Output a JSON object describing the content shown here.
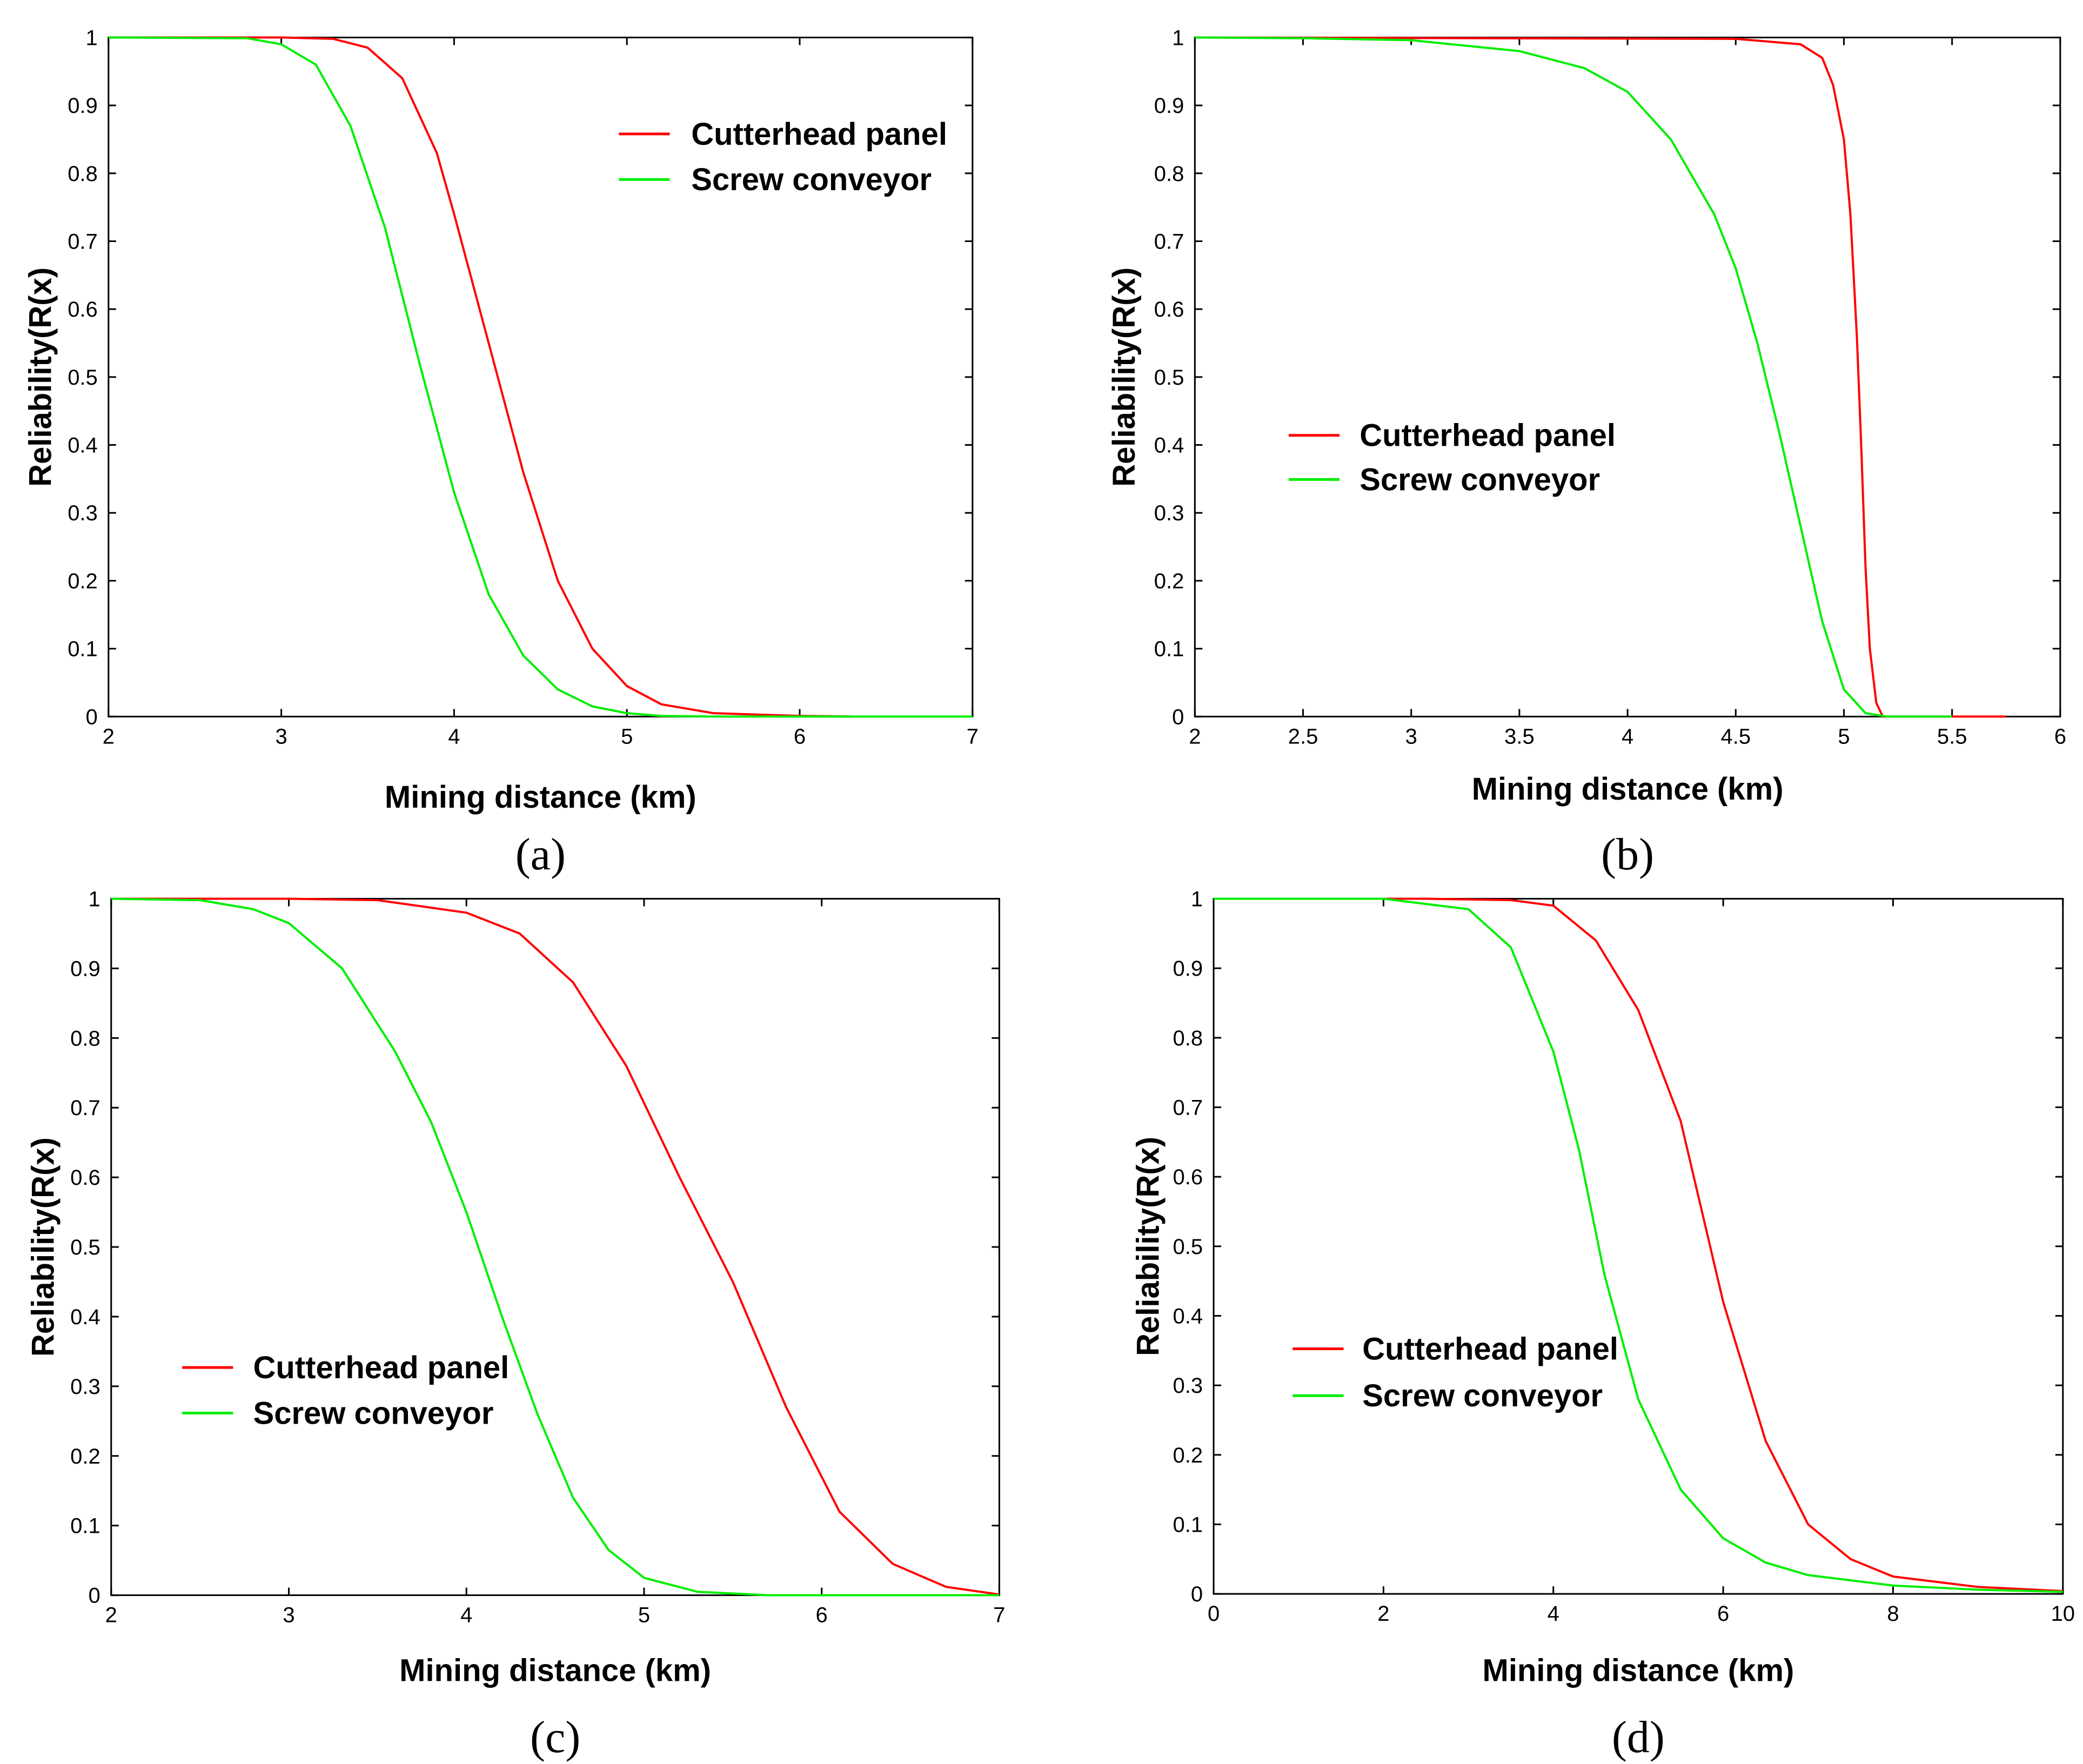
{
  "colors": {
    "cutterhead": "#ff0000",
    "screw": "#00ee00",
    "axis": "#000000"
  },
  "chart_data": [
    {
      "type": "line",
      "caption": "(a)",
      "xlabel": "Mining distance (km)",
      "ylabel": "Reliability(R(x)",
      "xlim": [
        2,
        7
      ],
      "ylim": [
        0,
        1
      ],
      "xticks": [
        2,
        3,
        4,
        5,
        6,
        7
      ],
      "xtick_labels": [
        "2",
        "3",
        "4",
        "5",
        "6",
        "7"
      ],
      "yticks": [
        0,
        0.1,
        0.2,
        0.3,
        0.4,
        0.5,
        0.6,
        0.7,
        0.8,
        0.9,
        1
      ],
      "ytick_labels": [
        "0",
        "0.1",
        "0.2",
        "0.3",
        "0.4",
        "0.5",
        "0.6",
        "0.7",
        "0.8",
        "0.9",
        "1"
      ],
      "legend_position": "top-right",
      "series": [
        {
          "name": "Cutterhead panel",
          "color": "#ff0000",
          "x": [
            2,
            3,
            3.3,
            3.5,
            3.7,
            3.9,
            4.0,
            4.2,
            4.4,
            4.6,
            4.8,
            5.0,
            5.2,
            5.5,
            6.0,
            6.3
          ],
          "y": [
            1,
            1,
            0.998,
            0.985,
            0.94,
            0.83,
            0.74,
            0.55,
            0.36,
            0.2,
            0.1,
            0.045,
            0.018,
            0.005,
            0.001,
            0
          ]
        },
        {
          "name": "Screw conveyor",
          "color": "#00ee00",
          "x": [
            2,
            2.8,
            3.0,
            3.2,
            3.4,
            3.6,
            3.8,
            4.0,
            4.2,
            4.4,
            4.6,
            4.8,
            5.0,
            5.2,
            5.5,
            7.0
          ],
          "y": [
            1,
            0.999,
            0.99,
            0.96,
            0.87,
            0.72,
            0.52,
            0.33,
            0.18,
            0.09,
            0.04,
            0.015,
            0.005,
            0.001,
            0,
            0
          ]
        }
      ]
    },
    {
      "type": "line",
      "caption": "(b)",
      "xlabel": "Mining distance (km)",
      "ylabel": "Reliability(R(x)",
      "xlim": [
        2,
        6
      ],
      "ylim": [
        0,
        1
      ],
      "xticks": [
        2,
        2.5,
        3,
        3.5,
        4,
        4.5,
        5,
        5.5,
        6
      ],
      "xtick_labels": [
        "2",
        "2.5",
        "3",
        "3.5",
        "4",
        "4.5",
        "5",
        "5.5",
        "6"
      ],
      "yticks": [
        0,
        0.1,
        0.2,
        0.3,
        0.4,
        0.5,
        0.6,
        0.7,
        0.8,
        0.9,
        1
      ],
      "ytick_labels": [
        "0",
        "0.1",
        "0.2",
        "0.3",
        "0.4",
        "0.5",
        "0.6",
        "0.7",
        "0.8",
        "0.9",
        "1"
      ],
      "legend_position": "center-left",
      "series": [
        {
          "name": "Cutterhead panel",
          "color": "#ff0000",
          "x": [
            2,
            4.5,
            4.8,
            4.9,
            4.95,
            5.0,
            5.03,
            5.06,
            5.08,
            5.1,
            5.12,
            5.15,
            5.18,
            5.75
          ],
          "y": [
            1,
            0.998,
            0.99,
            0.97,
            0.93,
            0.85,
            0.74,
            0.56,
            0.4,
            0.22,
            0.1,
            0.02,
            0,
            0
          ]
        },
        {
          "name": "Screw conveyor",
          "color": "#00ee00",
          "x": [
            2,
            2.5,
            3.0,
            3.5,
            3.8,
            4.0,
            4.2,
            4.4,
            4.5,
            4.6,
            4.7,
            4.8,
            4.9,
            5.0,
            5.1,
            5.2,
            5.5
          ],
          "y": [
            1,
            0.999,
            0.996,
            0.98,
            0.955,
            0.92,
            0.85,
            0.74,
            0.66,
            0.55,
            0.42,
            0.28,
            0.14,
            0.04,
            0.005,
            0,
            0
          ]
        }
      ]
    },
    {
      "type": "line",
      "caption": "(c)",
      "xlabel": "Mining distance (km)",
      "ylabel": "Reliability(R(x)",
      "xlim": [
        2,
        7
      ],
      "ylim": [
        0,
        1
      ],
      "xticks": [
        2,
        3,
        4,
        5,
        6,
        7
      ],
      "xtick_labels": [
        "2",
        "3",
        "4",
        "5",
        "6",
        "7"
      ],
      "yticks": [
        0,
        0.1,
        0.2,
        0.3,
        0.4,
        0.5,
        0.6,
        0.7,
        0.8,
        0.9,
        1
      ],
      "ytick_labels": [
        "0",
        "0.1",
        "0.2",
        "0.3",
        "0.4",
        "0.5",
        "0.6",
        "0.7",
        "0.8",
        "0.9",
        "1"
      ],
      "legend_position": "bottom-left",
      "series": [
        {
          "name": "Cutterhead panel",
          "color": "#ff0000",
          "x": [
            2,
            3.0,
            3.5,
            4.0,
            4.3,
            4.6,
            4.9,
            5.2,
            5.5,
            5.8,
            6.1,
            6.4,
            6.7,
            7.0
          ],
          "y": [
            1,
            1,
            0.998,
            0.98,
            0.95,
            0.88,
            0.76,
            0.6,
            0.45,
            0.27,
            0.12,
            0.045,
            0.012,
            0.001
          ]
        },
        {
          "name": "Screw conveyor",
          "color": "#00ee00",
          "x": [
            2,
            2.5,
            2.8,
            3.0,
            3.3,
            3.6,
            3.8,
            4.0,
            4.2,
            4.4,
            4.6,
            4.8,
            5.0,
            5.3,
            5.7,
            7.0
          ],
          "y": [
            1,
            0.998,
            0.985,
            0.965,
            0.9,
            0.78,
            0.68,
            0.55,
            0.4,
            0.26,
            0.14,
            0.065,
            0.025,
            0.005,
            0,
            0
          ]
        }
      ]
    },
    {
      "type": "line",
      "caption": "(d)",
      "xlabel": "Mining distance (km)",
      "ylabel": "Reliability(R(x)",
      "xlim": [
        0,
        10
      ],
      "ylim": [
        0,
        1
      ],
      "xticks": [
        0,
        2,
        4,
        6,
        8,
        10
      ],
      "xtick_labels": [
        "0",
        "2",
        "4",
        "6",
        "8",
        "10"
      ],
      "yticks": [
        0,
        0.1,
        0.2,
        0.3,
        0.4,
        0.5,
        0.6,
        0.7,
        0.8,
        0.9,
        1
      ],
      "ytick_labels": [
        "0",
        "0.1",
        "0.2",
        "0.3",
        "0.4",
        "0.5",
        "0.6",
        "0.7",
        "0.8",
        "0.9",
        "1"
      ],
      "legend_position": "center-left",
      "series": [
        {
          "name": "Cutterhead panel",
          "color": "#ff0000",
          "x": [
            0,
            2.5,
            3.5,
            4.0,
            4.5,
            5.0,
            5.5,
            6.0,
            6.5,
            7.0,
            7.5,
            8.0,
            9.0,
            10.0
          ],
          "y": [
            1,
            1,
            0.998,
            0.99,
            0.94,
            0.84,
            0.68,
            0.42,
            0.22,
            0.1,
            0.05,
            0.025,
            0.01,
            0.004
          ]
        },
        {
          "name": "Screw conveyor",
          "color": "#00ee00",
          "x": [
            0,
            2.0,
            3.0,
            3.5,
            4.0,
            4.3,
            4.6,
            5.0,
            5.5,
            6.0,
            6.5,
            7.0,
            8.0,
            9.0,
            10.0
          ],
          "y": [
            1,
            1,
            0.985,
            0.93,
            0.78,
            0.64,
            0.46,
            0.28,
            0.15,
            0.08,
            0.045,
            0.027,
            0.012,
            0.006,
            0.003
          ]
        }
      ]
    }
  ]
}
